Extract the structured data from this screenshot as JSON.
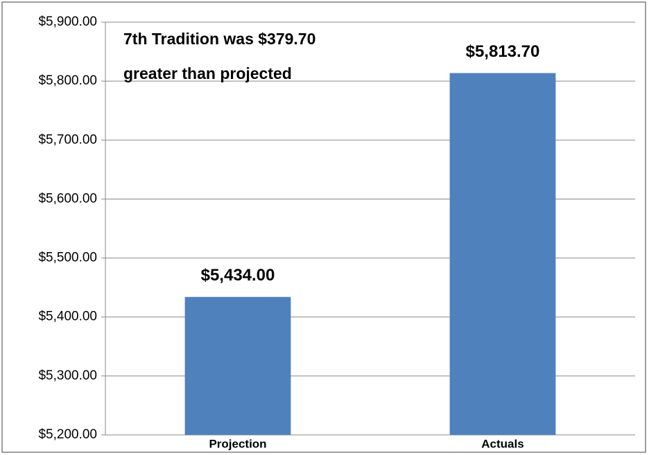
{
  "chart_data": {
    "type": "bar",
    "annotations": [
      "7th Tradition was $379.70",
      "greater than projected"
    ],
    "categories": [
      "Projection",
      "Actuals"
    ],
    "values": [
      5434.0,
      5813.7
    ],
    "value_labels": [
      "$5,434.00",
      "$5,813.70"
    ],
    "color": "#4f81bd",
    "ylim": [
      5200,
      5900
    ],
    "yticks": [
      {
        "value": 5200,
        "label": "$5,200.00"
      },
      {
        "value": 5300,
        "label": "$5,300.00"
      },
      {
        "value": 5400,
        "label": "$5,400.00"
      },
      {
        "value": 5500,
        "label": "$5,500.00"
      },
      {
        "value": 5600,
        "label": "$5,600.00"
      },
      {
        "value": 5700,
        "label": "$5,700.00"
      },
      {
        "value": 5800,
        "label": "$5,800.00"
      },
      {
        "value": 5900,
        "label": "$5,900.00"
      }
    ],
    "grid": true
  }
}
